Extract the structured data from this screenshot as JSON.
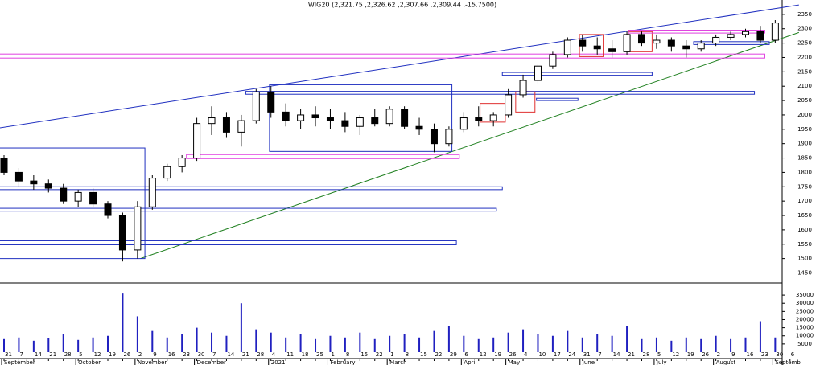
{
  "chart_data": {
    "type": "candlestick",
    "title": "WIG20 (2,321.75 ,2,326.62 ,2,307.66 ,2,309.44 ,-15.7500)",
    "categories": [
      "31",
      "7",
      "14",
      "21",
      "28",
      "5",
      "12",
      "19",
      "26",
      "2",
      "9",
      "16",
      "23",
      "30",
      "7",
      "14",
      "21",
      "28",
      "4",
      "11",
      "18",
      "25",
      "1",
      "8",
      "15",
      "22",
      "1",
      "8",
      "15",
      "22",
      "29",
      "6",
      "12",
      "19",
      "26",
      "4",
      "10",
      "17",
      "24",
      "31",
      "7",
      "14",
      "21",
      "28",
      "5",
      "12",
      "19",
      "26",
      "2",
      "9",
      "16",
      "23",
      "30",
      "6"
    ],
    "months": [
      "September",
      null,
      null,
      null,
      null,
      "October",
      null,
      null,
      null,
      "November",
      null,
      null,
      null,
      "December",
      null,
      null,
      null,
      null,
      "2021",
      null,
      null,
      null,
      "February",
      null,
      null,
      null,
      "March",
      null,
      null,
      null,
      null,
      "April",
      null,
      null,
      "May",
      null,
      null,
      null,
      null,
      "June",
      null,
      null,
      null,
      null,
      "July",
      null,
      null,
      null,
      "August",
      null,
      null,
      null,
      "Septemb",
      null
    ],
    "open": [
      1850,
      1800,
      1770,
      1760,
      1745,
      1700,
      1730,
      1690,
      1650,
      1530,
      1680,
      1780,
      1820,
      1850,
      1970,
      1990,
      1940,
      1980,
      2080,
      2010,
      1980,
      2000,
      1990,
      1980,
      1960,
      1990,
      1970,
      2020,
      1960,
      1950,
      1900,
      1950,
      1990,
      1980,
      2000,
      2070,
      2120,
      2170,
      2210,
      2260,
      2240,
      2230,
      2220,
      2280,
      2250,
      2260,
      2240,
      2230,
      2250,
      2270,
      2280,
      2290,
      2260,
      null
    ],
    "high": [
      1860,
      1815,
      1790,
      1775,
      1760,
      1740,
      1745,
      1700,
      1660,
      1700,
      1790,
      1830,
      1860,
      1990,
      2030,
      2010,
      2000,
      2090,
      2100,
      2040,
      2020,
      2030,
      2020,
      2010,
      2000,
      2020,
      2030,
      2030,
      1990,
      1970,
      1960,
      2010,
      2030,
      2010,
      2090,
      2140,
      2180,
      2220,
      2270,
      2280,
      2270,
      2260,
      2290,
      2290,
      2280,
      2270,
      2260,
      2260,
      2280,
      2290,
      2300,
      2310,
      2330,
      null
    ],
    "low": [
      1790,
      1750,
      1740,
      1730,
      1690,
      1680,
      1680,
      1640,
      1490,
      1500,
      1670,
      1770,
      1800,
      1840,
      1930,
      1920,
      1890,
      1970,
      1990,
      1960,
      1950,
      1960,
      1950,
      1940,
      1930,
      1960,
      1960,
      1950,
      1930,
      1870,
      1890,
      1940,
      1960,
      1960,
      1990,
      2060,
      2110,
      2160,
      2200,
      2220,
      2210,
      2200,
      2210,
      2240,
      2230,
      2220,
      2200,
      2220,
      2240,
      2260,
      2270,
      2250,
      2250,
      null
    ],
    "close": [
      1800,
      1770,
      1760,
      1745,
      1700,
      1730,
      1690,
      1650,
      1530,
      1680,
      1780,
      1820,
      1850,
      1970,
      1990,
      1940,
      1980,
      2080,
      2010,
      1980,
      2000,
      1990,
      1980,
      1960,
      1990,
      1970,
      2020,
      1960,
      1950,
      1900,
      1950,
      1990,
      1980,
      2000,
      2070,
      2120,
      2170,
      2210,
      2260,
      2240,
      2230,
      2220,
      2280,
      2250,
      2260,
      2240,
      2230,
      2250,
      2270,
      2280,
      2290,
      2260,
      2320,
      null
    ],
    "volume": [
      8000,
      9000,
      7000,
      8500,
      11000,
      7500,
      9000,
      10000,
      36000,
      22000,
      13000,
      9000,
      11000,
      15000,
      12000,
      10000,
      30000,
      14000,
      12000,
      9000,
      11000,
      8000,
      10000,
      9000,
      12000,
      8000,
      10000,
      11000,
      9000,
      13000,
      16000,
      10000,
      8000,
      9000,
      12000,
      14000,
      11000,
      10000,
      13000,
      9000,
      11000,
      10000,
      16000,
      8000,
      9000,
      7000,
      9000,
      8000,
      10000,
      8000,
      9000,
      19000,
      9000,
      null
    ],
    "up_color": "#ffffff",
    "down_color": "#000000",
    "volume_color": "#2020c0",
    "ylim": [
      1415,
      2400
    ],
    "yticks": [
      1450,
      1500,
      1550,
      1600,
      1650,
      1700,
      1750,
      1800,
      1850,
      1900,
      1950,
      2000,
      2050,
      2100,
      2150,
      2200,
      2250,
      2300,
      2350
    ],
    "volume_ylim": [
      0,
      38500
    ],
    "volume_yticks": [
      5000,
      10000,
      15000,
      20000,
      25000,
      30000,
      35000
    ],
    "overlays": [
      {
        "kind": "line",
        "color": "#2030c0",
        "x": [
          -0.3,
          53.6
        ],
        "y": [
          1955,
          2383
        ]
      },
      {
        "kind": "line",
        "color": "#208020",
        "x": [
          9.2,
          53.6
        ],
        "y": [
          1500,
          2287
        ]
      },
      {
        "kind": "box",
        "color": "#e040e0",
        "x": [
          -0.3,
          51.3
        ],
        "y": [
          2198,
          2212
        ]
      },
      {
        "kind": "box",
        "color": "#2030c0",
        "x": [
          17.9,
          30.2
        ],
        "y": [
          1873,
          2105
        ]
      },
      {
        "kind": "box",
        "color": "#2030c0",
        "x": [
          16.3,
          50.6
        ],
        "y": [
          2072,
          2082
        ]
      },
      {
        "kind": "box",
        "color": "#e040e0",
        "x": [
          12.3,
          30.7
        ],
        "y": [
          1848,
          1862
        ]
      },
      {
        "kind": "box",
        "color": "#2030c0",
        "x": [
          -0.3,
          9.5
        ],
        "y": [
          1500,
          1885
        ]
      },
      {
        "kind": "box",
        "color": "#2030c0",
        "x": [
          -0.3,
          33.6
        ],
        "y": [
          1740,
          1750
        ]
      },
      {
        "kind": "box",
        "color": "#2030c0",
        "x": [
          -0.3,
          33.2
        ],
        "y": [
          1665,
          1675
        ]
      },
      {
        "kind": "box",
        "color": "#2030c0",
        "x": [
          -0.3,
          30.5
        ],
        "y": [
          1548,
          1562
        ]
      },
      {
        "kind": "box",
        "color": "#2030c0",
        "x": [
          33.6,
          43.7
        ],
        "y": [
          2138,
          2148
        ]
      },
      {
        "kind": "box",
        "color": "#2030c0",
        "x": [
          35.9,
          38.7
        ],
        "y": [
          2050,
          2058
        ]
      },
      {
        "kind": "box",
        "color": "#e03030",
        "x": [
          32.1,
          33.8
        ],
        "y": [
          1975,
          2040
        ]
      },
      {
        "kind": "box",
        "color": "#e03030",
        "x": [
          34.5,
          35.8
        ],
        "y": [
          2010,
          2080
        ]
      },
      {
        "kind": "box",
        "color": "#e03030",
        "x": [
          38.8,
          40.4
        ],
        "y": [
          2203,
          2280
        ]
      },
      {
        "kind": "box",
        "color": "#e03030",
        "x": [
          42.1,
          43.7
        ],
        "y": [
          2220,
          2290
        ]
      },
      {
        "kind": "box",
        "color": "#e040e0",
        "x": [
          42.1,
          51.3
        ],
        "y": [
          2285,
          2295
        ]
      },
      {
        "kind": "box",
        "color": "#2030c0",
        "x": [
          46.5,
          51.6
        ],
        "y": [
          2245,
          2255
        ]
      }
    ]
  }
}
